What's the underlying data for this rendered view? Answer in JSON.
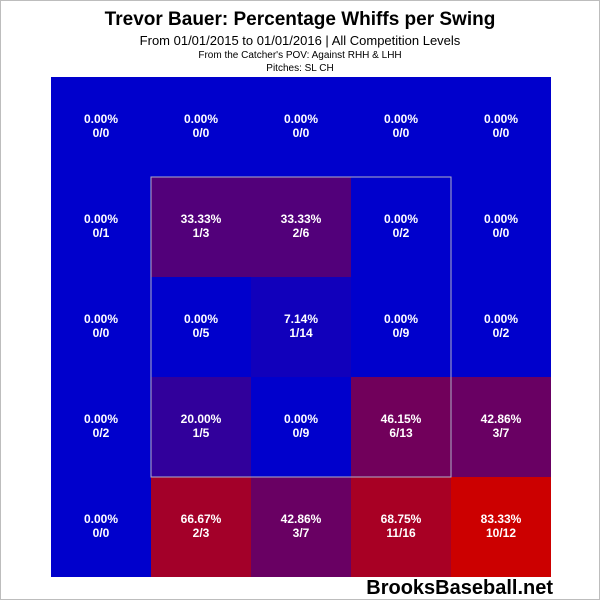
{
  "chart_data": {
    "type": "heatmap",
    "title": "Trevor Bauer: Percentage Whiffs per Swing",
    "subtitle": "From 01/01/2015 to 01/01/2016 | All Competition Levels",
    "captions": [
      "From the Catcher's POV:  Against RHH & LHH",
      "Pitches:  SL  CH"
    ],
    "rows": 5,
    "cols": 5,
    "strike_zone": {
      "rows": [
        1,
        3
      ],
      "cols": [
        1,
        3
      ]
    },
    "cells": [
      [
        {
          "pct": "0.00%",
          "count": "0/0",
          "value": 0
        },
        {
          "pct": "0.00%",
          "count": "0/0",
          "value": 0
        },
        {
          "pct": "0.00%",
          "count": "0/0",
          "value": 0
        },
        {
          "pct": "0.00%",
          "count": "0/0",
          "value": 0
        },
        {
          "pct": "0.00%",
          "count": "0/0",
          "value": 0
        }
      ],
      [
        {
          "pct": "0.00%",
          "count": "0/1",
          "value": 0
        },
        {
          "pct": "33.33%",
          "count": "1/3",
          "value": 33.33
        },
        {
          "pct": "33.33%",
          "count": "2/6",
          "value": 33.33
        },
        {
          "pct": "0.00%",
          "count": "0/2",
          "value": 0
        },
        {
          "pct": "0.00%",
          "count": "0/0",
          "value": 0
        }
      ],
      [
        {
          "pct": "0.00%",
          "count": "0/0",
          "value": 0
        },
        {
          "pct": "0.00%",
          "count": "0/5",
          "value": 0
        },
        {
          "pct": "7.14%",
          "count": "1/14",
          "value": 7.14
        },
        {
          "pct": "0.00%",
          "count": "0/9",
          "value": 0
        },
        {
          "pct": "0.00%",
          "count": "0/2",
          "value": 0
        }
      ],
      [
        {
          "pct": "0.00%",
          "count": "0/2",
          "value": 0
        },
        {
          "pct": "20.00%",
          "count": "1/5",
          "value": 20.0
        },
        {
          "pct": "0.00%",
          "count": "0/9",
          "value": 0
        },
        {
          "pct": "46.15%",
          "count": "6/13",
          "value": 46.15
        },
        {
          "pct": "42.86%",
          "count": "3/7",
          "value": 42.86
        }
      ],
      [
        {
          "pct": "0.00%",
          "count": "0/0",
          "value": 0
        },
        {
          "pct": "66.67%",
          "count": "2/3",
          "value": 66.67
        },
        {
          "pct": "42.86%",
          "count": "3/7",
          "value": 42.86
        },
        {
          "pct": "68.75%",
          "count": "11/16",
          "value": 68.75
        },
        {
          "pct": "83.33%",
          "count": "10/12",
          "value": 83.33
        }
      ]
    ],
    "color_scale": {
      "low": "#0000cc",
      "high": "#cc0000",
      "min": 0,
      "max": 83.33
    },
    "watermark": "BrooksBaseball.net"
  }
}
